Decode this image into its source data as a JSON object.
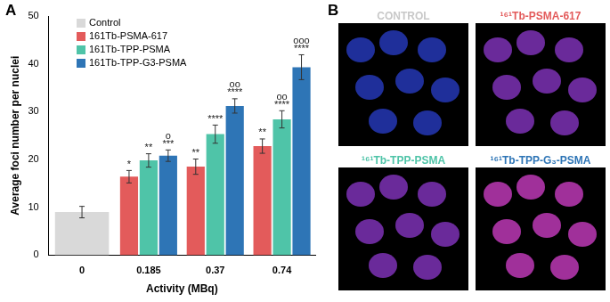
{
  "chart_data": {
    "type": "bar",
    "panel_label": "A",
    "x_label": "Activity (MBq)",
    "y_label": "Average foci number per nuclei",
    "categories": [
      "0",
      "0.185",
      "0.37",
      "0.74"
    ],
    "series": [
      {
        "name": "Control",
        "color": "#d9d9d9",
        "values": [
          9.0,
          null,
          null,
          null
        ],
        "errors": [
          1.2,
          null,
          null,
          null
        ],
        "significance": [
          null,
          null,
          null,
          null
        ]
      },
      {
        "name": "161Tb-PSMA-617",
        "color": "#e35b5b",
        "values": [
          null,
          16.4,
          18.5,
          22.8
        ],
        "errors": [
          null,
          1.3,
          1.6,
          1.5
        ],
        "significance": [
          null,
          [
            "*"
          ],
          [
            "**"
          ],
          [
            "**"
          ]
        ]
      },
      {
        "name": "161Tb-TPP-PSMA",
        "color": "#4fc4a8",
        "values": [
          null,
          19.8,
          25.3,
          28.4
        ],
        "errors": [
          null,
          1.4,
          1.9,
          1.8
        ],
        "significance": [
          null,
          [
            "**"
          ],
          [
            "****"
          ],
          [
            "oo",
            "****"
          ]
        ]
      },
      {
        "name": "161Tb-TPP-G3-PSMA",
        "color": "#2e75b6",
        "values": [
          null,
          20.8,
          31.2,
          39.3
        ],
        "errors": [
          null,
          1.2,
          1.5,
          2.6
        ],
        "significance": [
          null,
          [
            "o",
            "***"
          ],
          [
            "oo",
            "****"
          ],
          [
            "ooo",
            "****"
          ]
        ]
      }
    ],
    "ylim": [
      0,
      50
    ],
    "yticks": [
      0,
      10,
      20,
      30,
      40,
      50
    ],
    "grid": false,
    "legend": "top-left"
  },
  "panel_b": {
    "panel_label": "B",
    "images": [
      {
        "title": "CONTROL",
        "color": "#c8c8c8"
      },
      {
        "title": "¹⁶¹Tb-PSMA-617",
        "color": "#e35b5b"
      },
      {
        "title": "¹⁶¹Tb-TPP-PSMA",
        "color": "#4fc4a8"
      },
      {
        "title": "¹⁶¹Tb-TPP-G₃-PSMA",
        "color": "#2e75b6"
      }
    ]
  }
}
